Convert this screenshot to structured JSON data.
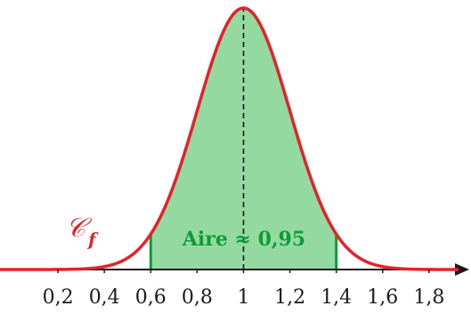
{
  "chart_data": {
    "type": "area",
    "curve_label": "𝒞",
    "curve_label_sub": "f",
    "area_label": "Aire ≈ 0,95",
    "mean": 1,
    "sigma": 0.2,
    "shaded_interval": [
      0.6,
      1.4
    ],
    "xlim": [
      0.0,
      2.0
    ],
    "x_ticks": [
      0.2,
      0.4,
      0.6,
      0.8,
      1,
      1.2,
      1.4,
      1.6,
      1.8
    ],
    "x_tick_labels": [
      "0,2",
      "0,4",
      "0,6",
      "0,8",
      "1",
      "1,2",
      "1,4",
      "1,6",
      "1,8"
    ],
    "colors": {
      "curve": "#e3222a",
      "area_fill": "#93d9a0",
      "area_edge": "#0f9a3c",
      "axis": "#1a1a1a"
    }
  }
}
